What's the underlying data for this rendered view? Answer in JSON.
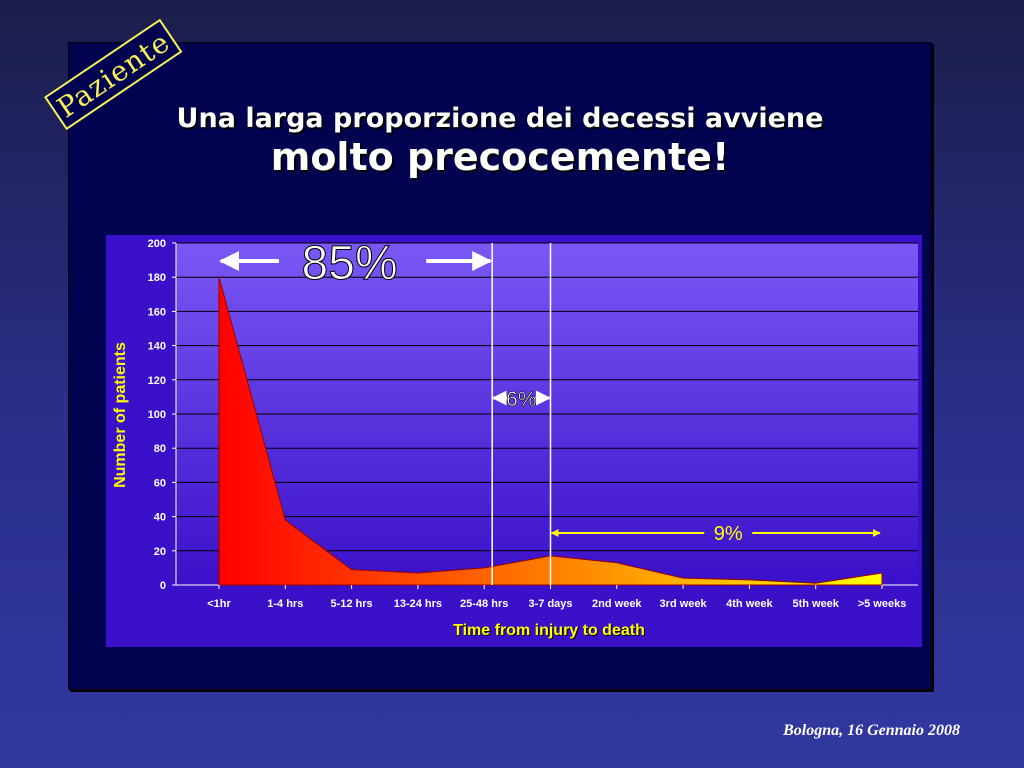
{
  "badge": {
    "text": "Paziente"
  },
  "title": {
    "line1": "Una larga proporzione dei decessi avviene",
    "line2": "molto precocemente!"
  },
  "footer": {
    "text": "Bologna, 16 Gennaio 2008"
  },
  "chart_data": {
    "type": "area",
    "categories": [
      "<1hr",
      "1-4 hrs",
      "5-12 hrs",
      "13-24 hrs",
      "25-48 hrs",
      "3-7 days",
      "2nd week",
      "3rd week",
      "4th week",
      "5th week",
      ">5 weeks"
    ],
    "values": [
      180,
      38,
      9,
      7,
      10,
      17,
      13,
      4,
      3,
      1,
      7
    ],
    "ylim": [
      0,
      200
    ],
    "yticks": [
      0,
      20,
      40,
      60,
      80,
      100,
      120,
      140,
      160,
      180,
      200
    ],
    "ylabel": "Number of patients",
    "xlabel": "Time from injury to death",
    "grid": true,
    "colors": {
      "start": "#ff0000",
      "end": "#ffff00",
      "panel": "#7a58f5",
      "panel_bottom": "#3a10c8",
      "label": "#ffff00"
    },
    "annotations": [
      {
        "text": "85%",
        "from": "<1hr",
        "to": "25-48 hrs"
      },
      {
        "text": "6%",
        "from": "25-48 hrs",
        "to": "3-7 days"
      },
      {
        "text": "9%",
        "from": "3-7 days",
        "to": ">5 weeks"
      }
    ]
  }
}
